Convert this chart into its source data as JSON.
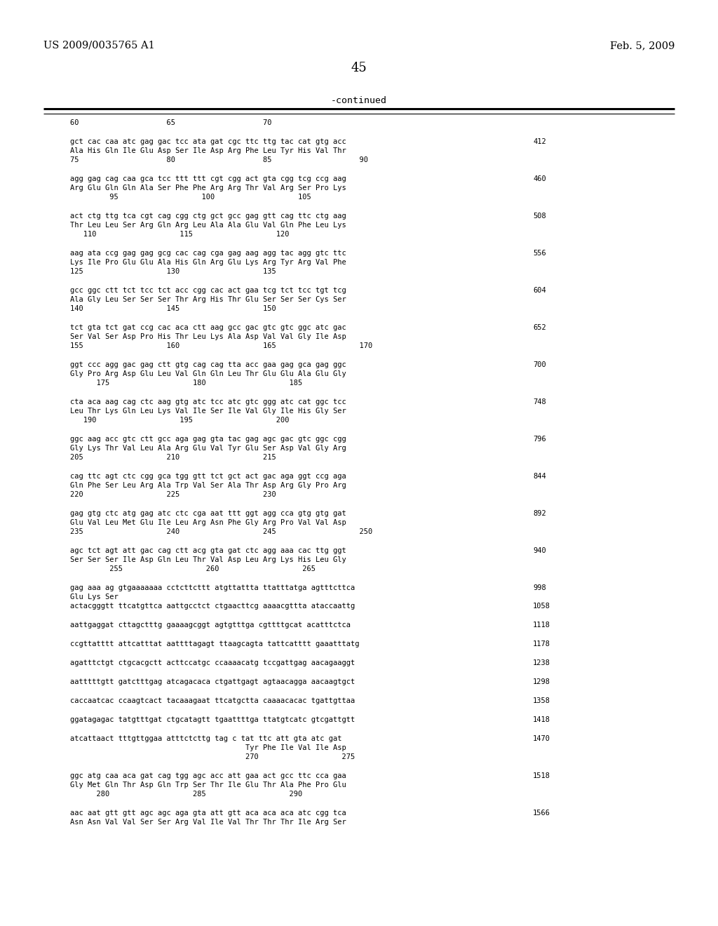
{
  "header_left": "US 2009/0035765 A1",
  "header_right": "Feb. 5, 2009",
  "page_number": "45",
  "continued_label": "-continued",
  "background_color": "#ffffff",
  "text_color": "#000000",
  "lines": [
    {
      "t": "ruler",
      "text": "60                    65                    70"
    },
    {
      "t": "gap"
    },
    {
      "t": "dna",
      "text": "gct cac caa atc gag gac tcc ata gat cgc ttc ttg tac cat gtg acc",
      "num": "412"
    },
    {
      "t": "aa",
      "text": "Ala His Gln Ile Glu Asp Ser Ile Asp Arg Phe Leu Tyr His Val Thr"
    },
    {
      "t": "pos",
      "text": "75                    80                    85                    90"
    },
    {
      "t": "gap"
    },
    {
      "t": "dna",
      "text": "agg gag cag caa gca tcc ttt ttt cgt cgg act gta cgg tcg ccg aag",
      "num": "460"
    },
    {
      "t": "aa",
      "text": "Arg Glu Gln Gln Ala Ser Phe Phe Arg Arg Thr Val Arg Ser Pro Lys"
    },
    {
      "t": "pos",
      "text": "         95                   100                   105"
    },
    {
      "t": "gap"
    },
    {
      "t": "dna",
      "text": "act ctg ttg tca cgt cag cgg ctg gct gcc gag gtt cag ttc ctg aag",
      "num": "508"
    },
    {
      "t": "aa",
      "text": "Thr Leu Leu Ser Arg Gln Arg Leu Ala Ala Glu Val Gln Phe Leu Lys"
    },
    {
      "t": "pos",
      "text": "   110                   115                   120"
    },
    {
      "t": "gap"
    },
    {
      "t": "dna",
      "text": "aag ata ccg gag gag gcg cac cag cga gag aag agg tac agg gtc ttc",
      "num": "556"
    },
    {
      "t": "aa",
      "text": "Lys Ile Pro Glu Glu Ala His Gln Arg Glu Lys Arg Tyr Arg Val Phe"
    },
    {
      "t": "pos",
      "text": "125                   130                   135"
    },
    {
      "t": "gap"
    },
    {
      "t": "dna",
      "text": "gcc ggc ctt tct tcc tct acc cgg cac act gaa tcg tct tcc tgt tcg",
      "num": "604"
    },
    {
      "t": "aa",
      "text": "Ala Gly Leu Ser Ser Ser Thr Arg His Thr Glu Ser Ser Ser Cys Ser"
    },
    {
      "t": "pos",
      "text": "140                   145                   150"
    },
    {
      "t": "gap"
    },
    {
      "t": "dna",
      "text": "tct gta tct gat ccg cac aca ctt aag gcc gac gtc gtc ggc atc gac",
      "num": "652"
    },
    {
      "t": "aa",
      "text": "Ser Val Ser Asp Pro His Thr Leu Lys Ala Asp Val Val Gly Ile Asp"
    },
    {
      "t": "pos",
      "text": "155                   160                   165                   170"
    },
    {
      "t": "gap"
    },
    {
      "t": "dna",
      "text": "ggt ccc agg gac gag ctt gtg cag cag tta acc gaa gag gca gag ggc",
      "num": "700"
    },
    {
      "t": "aa",
      "text": "Gly Pro Arg Asp Glu Leu Val Gln Gln Leu Thr Glu Glu Ala Glu Gly"
    },
    {
      "t": "pos",
      "text": "      175                   180                   185"
    },
    {
      "t": "gap"
    },
    {
      "t": "dna",
      "text": "cta aca aag cag ctc aag gtg atc tcc atc gtc ggg atc cat ggc tcc",
      "num": "748"
    },
    {
      "t": "aa",
      "text": "Leu Thr Lys Gln Leu Lys Val Ile Ser Ile Val Gly Ile His Gly Ser"
    },
    {
      "t": "pos",
      "text": "   190                   195                   200"
    },
    {
      "t": "gap"
    },
    {
      "t": "dna",
      "text": "ggc aag acc gtc ctt gcc aga gag gta tac gag agc gac gtc ggc cgg",
      "num": "796"
    },
    {
      "t": "aa",
      "text": "Gly Lys Thr Val Leu Ala Arg Glu Val Tyr Glu Ser Asp Val Gly Arg"
    },
    {
      "t": "pos",
      "text": "205                   210                   215"
    },
    {
      "t": "gap"
    },
    {
      "t": "dna",
      "text": "cag ttc agt ctc cgg gca tgg gtt tct gct act gac aga ggt ccg aga",
      "num": "844"
    },
    {
      "t": "aa",
      "text": "Gln Phe Ser Leu Arg Ala Trp Val Ser Ala Thr Asp Arg Gly Pro Arg"
    },
    {
      "t": "pos",
      "text": "220                   225                   230"
    },
    {
      "t": "gap"
    },
    {
      "t": "dna",
      "text": "gag gtg ctc atg gag atc ctc cga aat ttt ggt agg cca gtg gtg gat",
      "num": "892"
    },
    {
      "t": "aa",
      "text": "Glu Val Leu Met Glu Ile Leu Arg Asn Phe Gly Arg Pro Val Val Asp"
    },
    {
      "t": "pos",
      "text": "235                   240                   245                   250"
    },
    {
      "t": "gap"
    },
    {
      "t": "dna",
      "text": "agc tct agt att gac cag ctt acg gta gat ctc agg aaa cac ttg ggt",
      "num": "940"
    },
    {
      "t": "aa",
      "text": "Ser Ser Ser Ile Asp Gln Leu Thr Val Asp Leu Arg Lys His Leu Gly"
    },
    {
      "t": "pos",
      "text": "         255                   260                   265"
    },
    {
      "t": "gap"
    },
    {
      "t": "dna",
      "text": "gag aaa ag gtgaaaaaaa cctcttcttt atgttattta ttatttatga agtttcttca",
      "num": "998"
    },
    {
      "t": "aa",
      "text": "Glu Lys Ser"
    },
    {
      "t": "dna2",
      "text": "actacgggtt ttcatgttca aattgcctct ctgaacttcg aaaacgttta ataccaattg",
      "num": "1058"
    },
    {
      "t": "gap"
    },
    {
      "t": "dna2",
      "text": "aattgaggat cttagctttg gaaaagcggt agtgtttga cgttttgcat acatttctca",
      "num": "1118"
    },
    {
      "t": "gap"
    },
    {
      "t": "dna2",
      "text": "ccgttatttt attcatttat aattttagagt ttaagcagta tattcatttt gaaatttatg",
      "num": "1178"
    },
    {
      "t": "gap"
    },
    {
      "t": "dna2",
      "text": "agatttctgt ctgcacgctt acttccatgc ccaaaacatg tccgattgag aacagaaggt",
      "num": "1238"
    },
    {
      "t": "gap"
    },
    {
      "t": "dna2",
      "text": "aatttttgtt gatctttgag atcagacaca ctgattgagt agtaacagga aacaagtgct",
      "num": "1298"
    },
    {
      "t": "gap"
    },
    {
      "t": "dna2",
      "text": "caccaatcac ccaagtcact tacaaagaat ttcatgctta caaaacacac tgattgttaa",
      "num": "1358"
    },
    {
      "t": "gap"
    },
    {
      "t": "dna2",
      "text": "ggatagagac tatgtttgat ctgcatagtt tgaattttga ttatgtcatc gtcgattgtt",
      "num": "1418"
    },
    {
      "t": "gap"
    },
    {
      "t": "dna",
      "text": "atcattaact tttgttggaa atttctcttg tag c tat ttc att gta atc gat",
      "num": "1470"
    },
    {
      "t": "aa",
      "text": "                                        Tyr Phe Ile Val Ile Asp"
    },
    {
      "t": "pos",
      "text": "                                        270                   275"
    },
    {
      "t": "gap"
    },
    {
      "t": "dna",
      "text": "ggc atg caa aca gat cag tgg agc acc att gaa act gcc ttc cca gaa",
      "num": "1518"
    },
    {
      "t": "aa",
      "text": "Gly Met Gln Thr Asp Gln Trp Ser Thr Ile Glu Thr Ala Phe Pro Glu"
    },
    {
      "t": "pos",
      "text": "      280                   285                   290"
    },
    {
      "t": "gap"
    },
    {
      "t": "dna",
      "text": "aac aat gtt gtt agc agc aga gta att gtt aca aca aca atc cgg tca",
      "num": "1566"
    },
    {
      "t": "aa",
      "text": "Asn Asn Val Val Ser Ser Arg Val Ile Val Thr Thr Thr Ile Arg Ser"
    }
  ]
}
